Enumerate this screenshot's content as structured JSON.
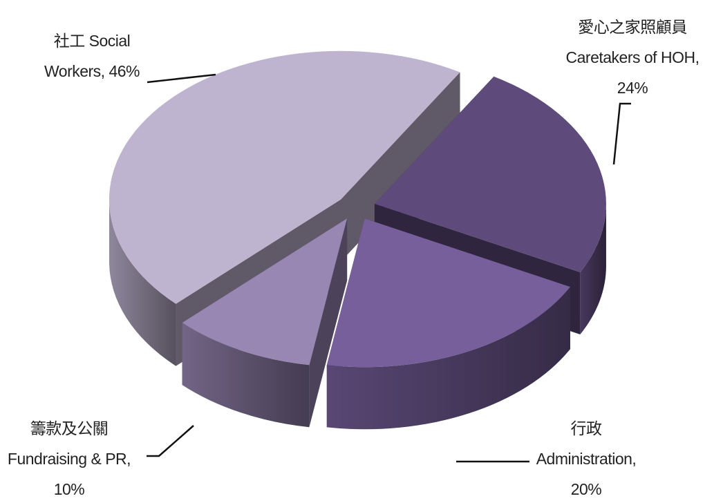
{
  "chart_data": {
    "type": "pie3d",
    "categories": [
      "愛心之家照顧員 Caretakers of HOH,",
      "行政 Administration,",
      "籌款及公關 Fundraising & PR,",
      "社工 Social Workers,"
    ],
    "values": [
      24,
      20,
      10,
      46
    ],
    "value_labels": [
      "24%",
      "20%",
      "10%",
      "46%"
    ],
    "colors": [
      "#5f4a7c",
      "#765f9b",
      "#9886b3",
      "#bfb4d0"
    ]
  }
}
